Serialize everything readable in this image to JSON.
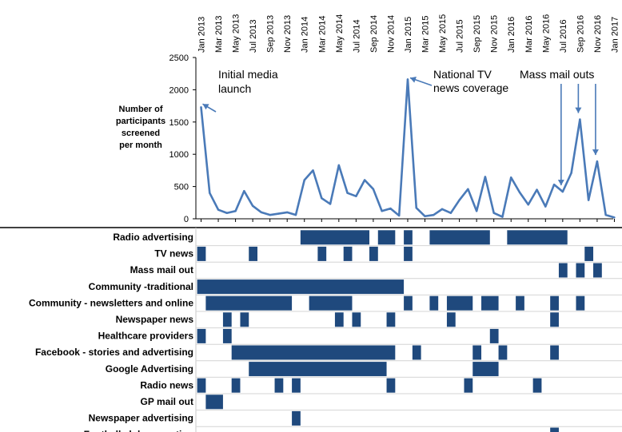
{
  "chart_data": {
    "type": "line",
    "title": "",
    "ylabel_lines": [
      "Number of",
      "participants",
      "screened",
      "per month"
    ],
    "ylim": [
      0,
      2500
    ],
    "yticks": [
      0,
      500,
      1000,
      1500,
      2000,
      2500
    ],
    "xtick_labels": [
      "Jan 2013",
      "Mar 2013",
      "May 2013",
      "Jul 2013",
      "Sep 2013",
      "Nov 2013",
      "Jan 2014",
      "Mar 2014",
      "May 2014",
      "Jul 2014",
      "Sep 2014",
      "Nov 2014",
      "Jan 2015",
      "Mar 2015",
      "May 2015",
      "Jul 2015",
      "Sep 2015",
      "Nov 2015",
      "Jan 2016",
      "Mar 2016",
      "May 2016",
      "Jul 2016",
      "Sep 2016",
      "Nov 2016",
      "Jan 2017"
    ],
    "series": [
      {
        "name": "Number of participants screened per month",
        "color": "#4a7ab8",
        "values": [
          1730,
          400,
          140,
          90,
          120,
          430,
          200,
          100,
          60,
          80,
          100,
          60,
          600,
          750,
          320,
          230,
          830,
          400,
          350,
          600,
          460,
          120,
          160,
          50,
          2160,
          170,
          40,
          60,
          150,
          90,
          290,
          460,
          120,
          650,
          90,
          30,
          640,
          410,
          220,
          450,
          190,
          530,
          420,
          710,
          1540,
          290,
          890,
          60,
          20
        ]
      }
    ],
    "annotations": [
      {
        "lines": [
          "Initial media",
          "launch"
        ],
        "month": 0
      },
      {
        "lines": [
          "National TV",
          "news coverage"
        ],
        "month": 24
      },
      {
        "lines": [
          "Mass mail outs"
        ],
        "months": [
          42,
          44,
          46
        ]
      }
    ],
    "activities": {
      "bar_color": "#1f497d",
      "rows": [
        {
          "label": "Radio advertising",
          "segments": [
            [
              12,
              19
            ],
            [
              21,
              22
            ],
            [
              24,
              24
            ],
            [
              27,
              33
            ],
            [
              36,
              42
            ]
          ]
        },
        {
          "label": "TV news",
          "segments": [
            [
              0,
              0
            ],
            [
              6,
              6
            ],
            [
              14,
              14
            ],
            [
              17,
              17
            ],
            [
              20,
              20
            ],
            [
              24,
              24
            ],
            [
              45,
              45
            ]
          ]
        },
        {
          "label": "Mass mail out",
          "segments": [
            [
              42,
              42
            ],
            [
              44,
              44
            ],
            [
              46,
              46
            ]
          ]
        },
        {
          "label": "Community -traditional",
          "segments": [
            [
              0,
              23
            ]
          ]
        },
        {
          "label": "Community - newsletters and online",
          "segments": [
            [
              1,
              10
            ],
            [
              13,
              17
            ],
            [
              24,
              24
            ],
            [
              27,
              27
            ],
            [
              29,
              31
            ],
            [
              33,
              34
            ],
            [
              37,
              37
            ],
            [
              41,
              41
            ],
            [
              44,
              44
            ]
          ]
        },
        {
          "label": "Newspaper news",
          "segments": [
            [
              3,
              3
            ],
            [
              5,
              5
            ],
            [
              16,
              16
            ],
            [
              18,
              18
            ],
            [
              22,
              22
            ],
            [
              29,
              29
            ],
            [
              41,
              41
            ]
          ]
        },
        {
          "label": "Healthcare providers",
          "segments": [
            [
              0,
              0
            ],
            [
              3,
              3
            ],
            [
              34,
              34
            ]
          ]
        },
        {
          "label": "Facebook - stories and advertising",
          "segments": [
            [
              4,
              22
            ],
            [
              25,
              25
            ],
            [
              32,
              32
            ],
            [
              35,
              35
            ],
            [
              41,
              41
            ]
          ]
        },
        {
          "label": "Google Advertising",
          "segments": [
            [
              6,
              21
            ],
            [
              32,
              34
            ]
          ]
        },
        {
          "label": "Radio news",
          "segments": [
            [
              0,
              0
            ],
            [
              4,
              4
            ],
            [
              9,
              9
            ],
            [
              11,
              11
            ],
            [
              22,
              22
            ],
            [
              31,
              31
            ],
            [
              39,
              39
            ]
          ]
        },
        {
          "label": "GP mail out",
          "segments": [
            [
              1,
              2
            ]
          ]
        },
        {
          "label": "Newspaper advertising",
          "segments": [
            [
              11,
              11
            ]
          ]
        },
        {
          "label": "Football club promotion",
          "segments": [
            [
              41,
              41
            ]
          ]
        }
      ]
    }
  }
}
